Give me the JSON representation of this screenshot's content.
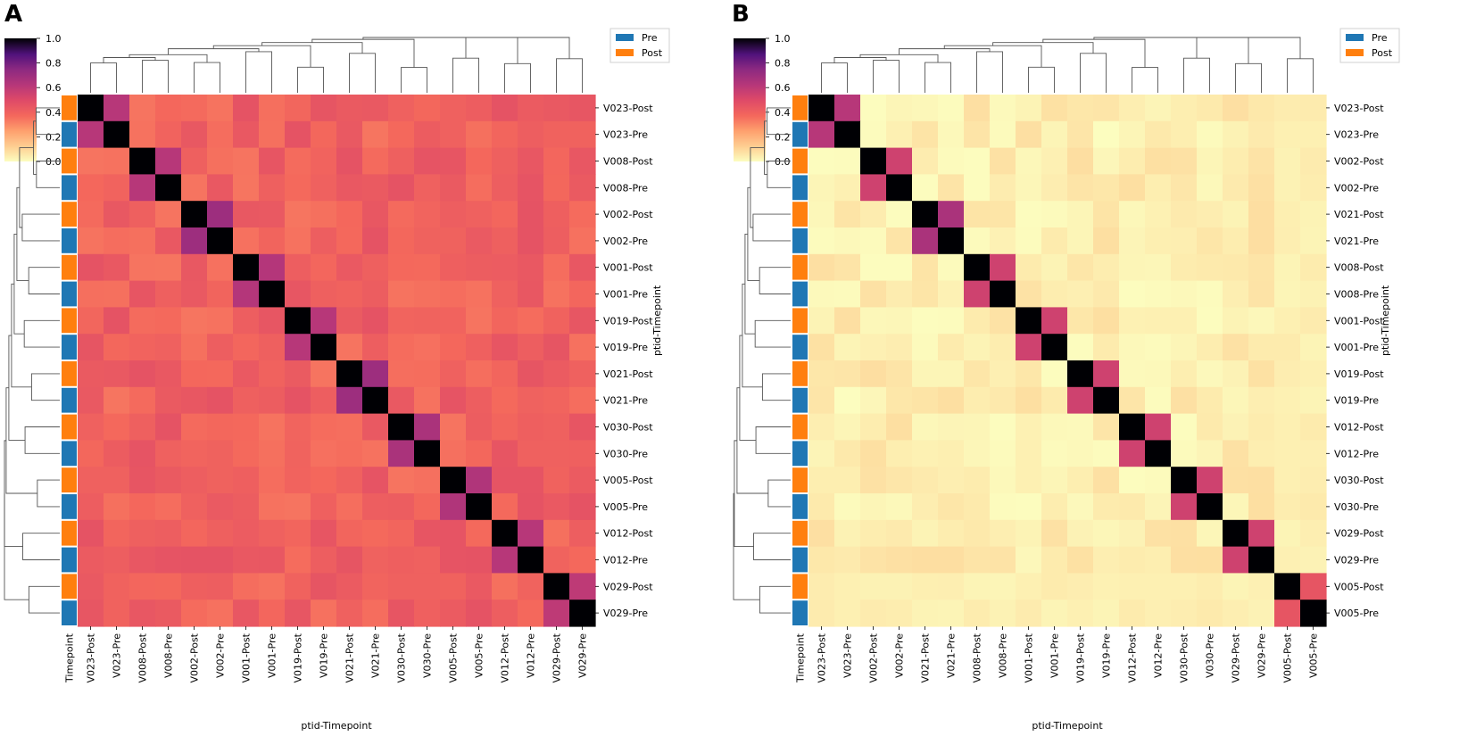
{
  "colors": {
    "pre": "#1f77b4",
    "post": "#ff7f0e",
    "colormap": "magma_r"
  },
  "chart_data": [
    {
      "type": "heatmap",
      "panel_label": "A",
      "variant": "clustermap",
      "row_labels": [
        "V023-Post",
        "V023-Pre",
        "V008-Post",
        "V008-Pre",
        "V002-Post",
        "V002-Pre",
        "V001-Post",
        "V001-Pre",
        "V019-Post",
        "V019-Pre",
        "V021-Post",
        "V021-Pre",
        "V030-Post",
        "V030-Pre",
        "V005-Post",
        "V005-Pre",
        "V012-Post",
        "V012-Pre",
        "V029-Post",
        "V029-Pre"
      ],
      "col_labels": [
        "V023-Post",
        "V023-Pre",
        "V008-Post",
        "V008-Pre",
        "V002-Post",
        "V002-Pre",
        "V001-Post",
        "V001-Pre",
        "V019-Post",
        "V019-Pre",
        "V021-Post",
        "V021-Pre",
        "V030-Post",
        "V030-Pre",
        "V005-Post",
        "V005-Pre",
        "V012-Post",
        "V012-Pre",
        "V029-Post",
        "V029-Pre"
      ],
      "timepoints": [
        "Post",
        "Pre",
        "Post",
        "Pre",
        "Post",
        "Pre",
        "Post",
        "Pre",
        "Post",
        "Pre",
        "Post",
        "Pre",
        "Post",
        "Pre",
        "Post",
        "Pre",
        "Post",
        "Pre",
        "Post",
        "Pre"
      ],
      "pair_similarity": [
        0.62,
        0.62,
        0.7,
        0.63,
        0.62,
        0.7,
        0.66,
        0.64,
        0.62,
        0.6
      ],
      "background_value": 0.4,
      "xlabel": "ptid-Timepoint",
      "ylabel": "ptid-Timepoint",
      "annotation_label": "Timepoint",
      "colorbar": {
        "min": 0.0,
        "max": 1.0,
        "ticks": [
          "0.0",
          "0.2",
          "0.4",
          "0.6",
          "0.8",
          "1.0"
        ]
      },
      "legend": {
        "entries": [
          "Pre",
          "Post"
        ],
        "placement": "top-right"
      }
    },
    {
      "type": "heatmap",
      "panel_label": "B",
      "variant": "clustermap",
      "row_labels": [
        "V023-Post",
        "V023-Pre",
        "V002-Post",
        "V002-Pre",
        "V021-Post",
        "V021-Pre",
        "V008-Post",
        "V008-Pre",
        "V001-Post",
        "V001-Pre",
        "V019-Post",
        "V019-Pre",
        "V012-Post",
        "V012-Pre",
        "V030-Post",
        "V030-Pre",
        "V029-Post",
        "V029-Pre",
        "V005-Post",
        "V005-Pre"
      ],
      "col_labels": [
        "V023-Post",
        "V023-Pre",
        "V002-Post",
        "V002-Pre",
        "V021-Post",
        "V021-Pre",
        "V008-Post",
        "V008-Pre",
        "V001-Post",
        "V001-Pre",
        "V019-Post",
        "V019-Pre",
        "V012-Post",
        "V012-Pre",
        "V030-Post",
        "V030-Pre",
        "V029-Post",
        "V029-Pre",
        "V005-Post",
        "V005-Pre"
      ],
      "timepoints": [
        "Post",
        "Pre",
        "Post",
        "Pre",
        "Post",
        "Pre",
        "Post",
        "Pre",
        "Post",
        "Pre",
        "Post",
        "Pre",
        "Post",
        "Pre",
        "Post",
        "Pre",
        "Post",
        "Pre",
        "Post",
        "Pre"
      ],
      "pair_similarity": [
        0.62,
        0.55,
        0.66,
        0.55,
        0.55,
        0.55,
        0.55,
        0.55,
        0.55,
        0.45
      ],
      "background_value": 0.04,
      "xlabel": "ptid-Timepoint",
      "ylabel": "ptid-Timepoint",
      "annotation_label": "Timepoint",
      "colorbar": {
        "min": 0.0,
        "max": 1.0,
        "ticks": [
          "0.0",
          "0.2",
          "0.4",
          "0.6",
          "0.8",
          "1.0"
        ]
      },
      "legend": {
        "entries": [
          "Pre",
          "Post"
        ],
        "placement": "top-right"
      }
    }
  ]
}
